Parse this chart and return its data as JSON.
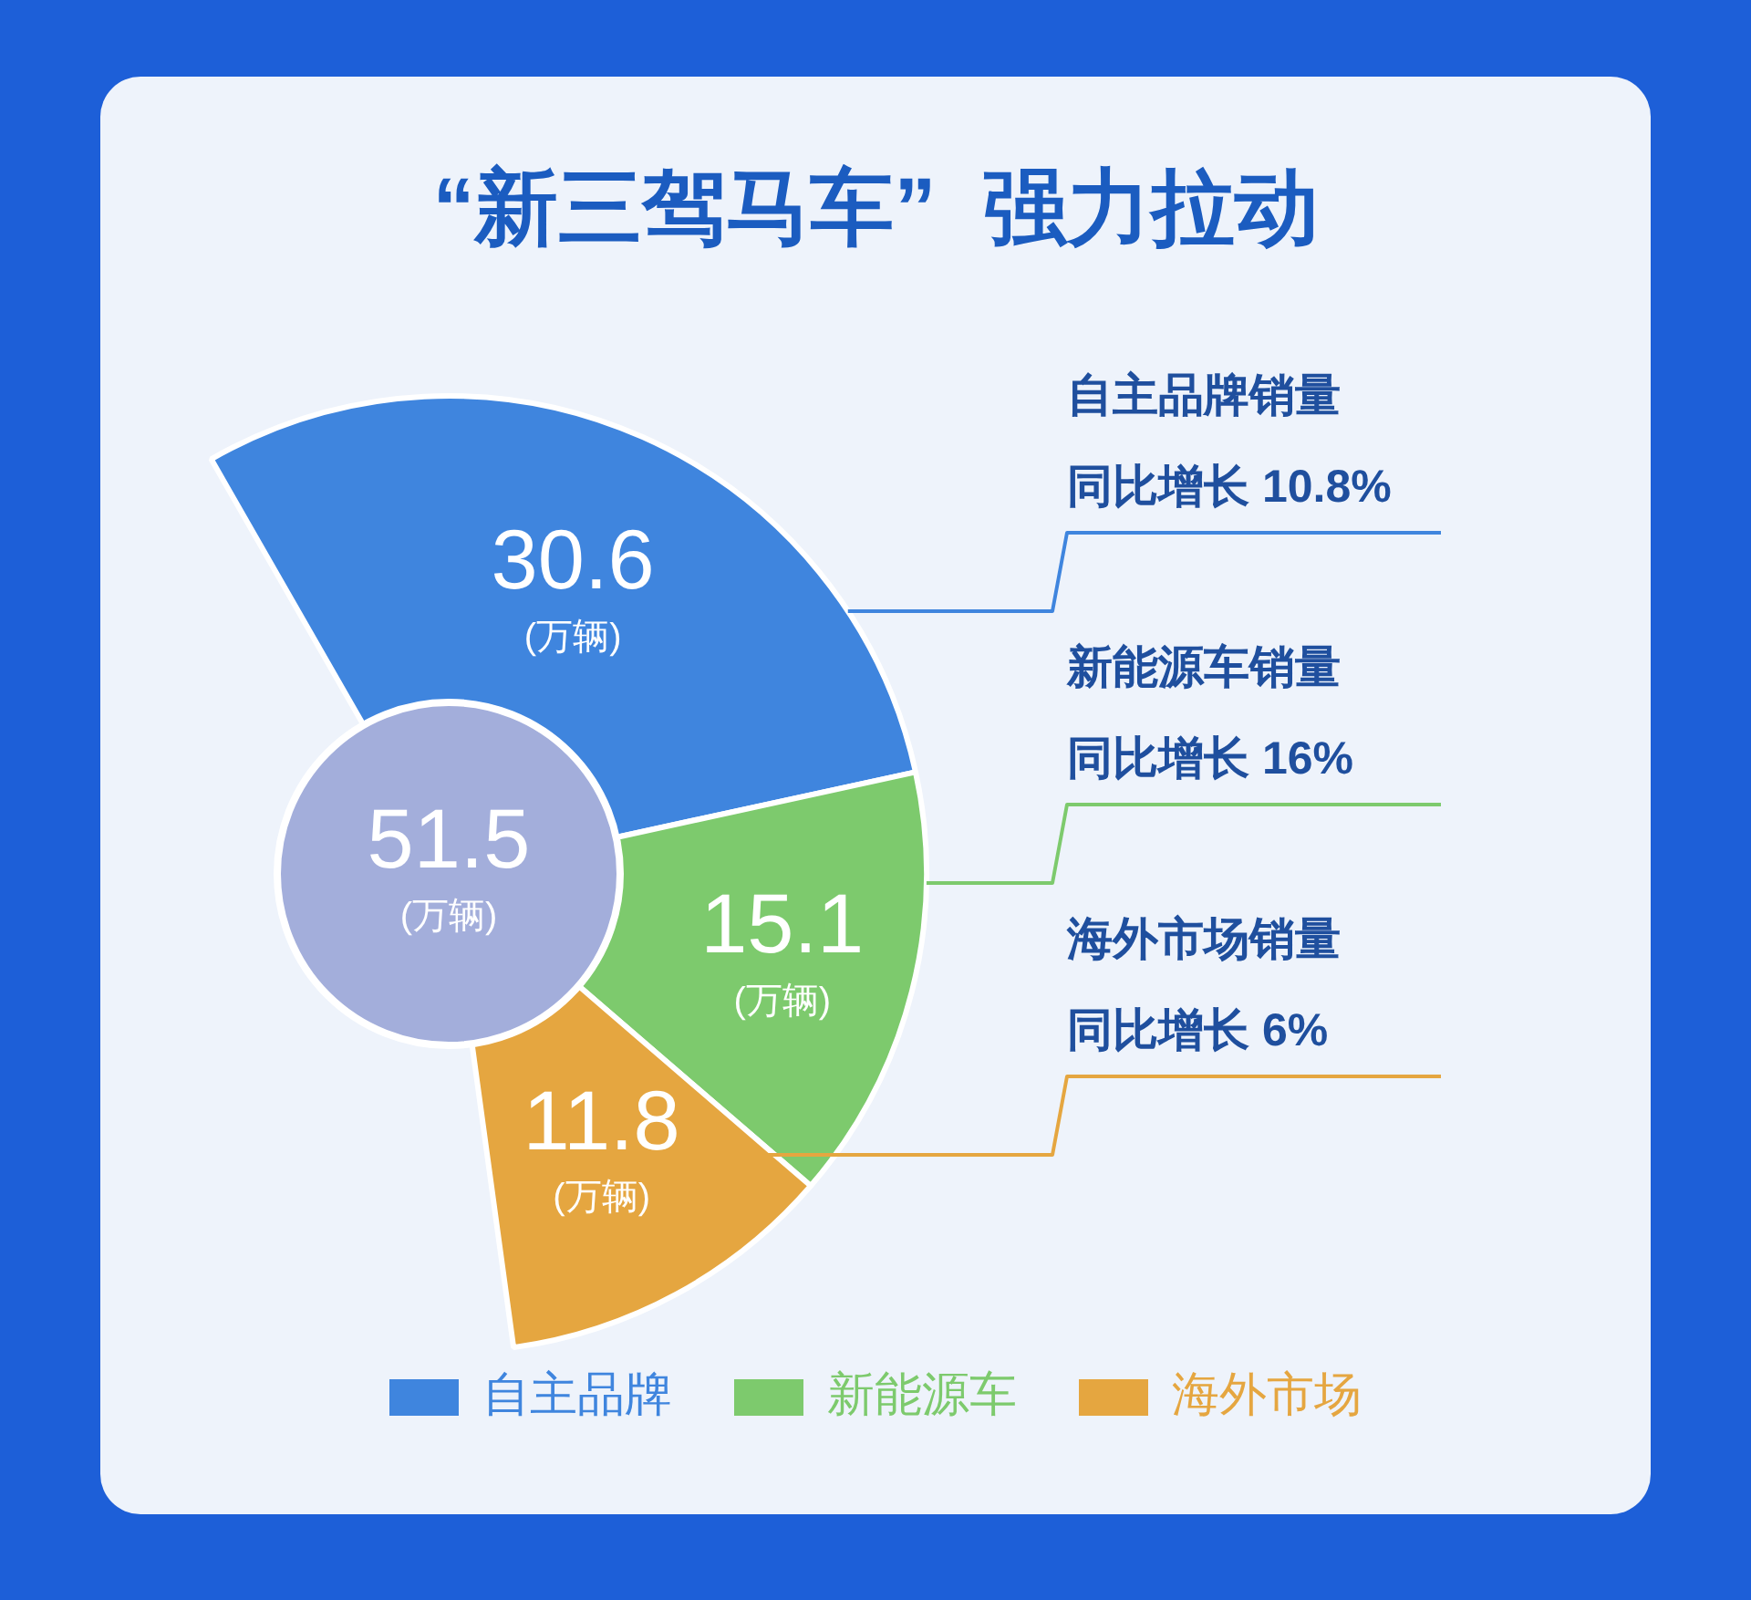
{
  "chart_data": {
    "type": "donut",
    "title": "“新三驾马车”  强力拉动",
    "categories": [
      "自主品牌",
      "新能源车",
      "海外市场"
    ],
    "values": [
      30.6,
      15.1,
      11.8
    ],
    "colors": [
      "#3f85de",
      "#7dca6d",
      "#e5a640"
    ],
    "value_labels": [
      "30.6\n(万辆)",
      "15.1\n(万辆)",
      "11.8\n(万辆)"
    ],
    "legend": "bottom",
    "annotations": [
      "51.5\n(万辆)",
      "自主品牌销量",
      "同比增长 10.8%",
      "新能源车销量",
      "同比增长 16%",
      "海外市场销量",
      "同比增长 6%"
    ]
  }
}
